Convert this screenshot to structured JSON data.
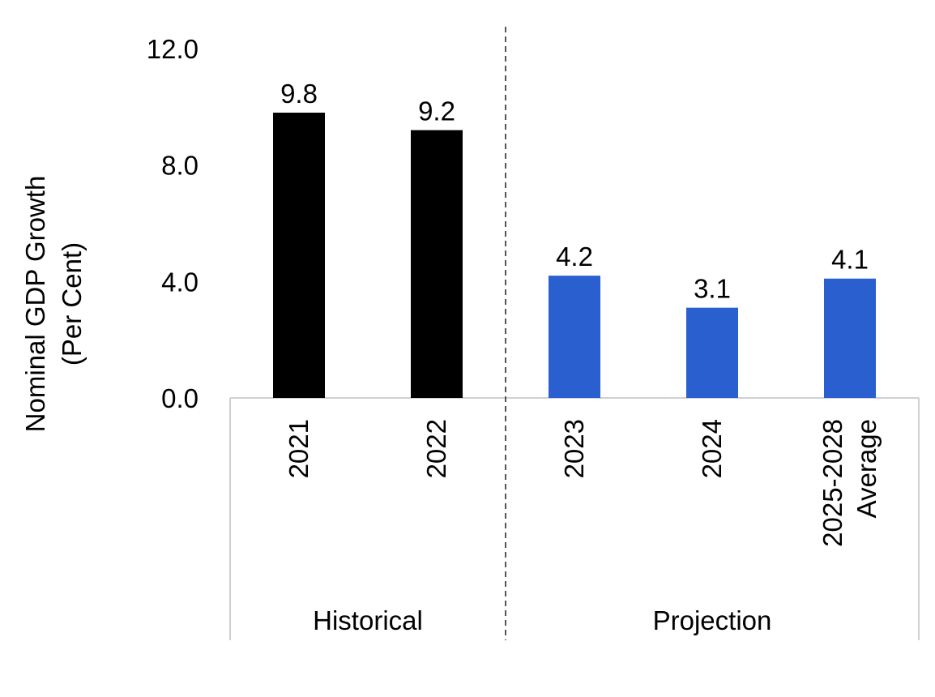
{
  "chart_data": {
    "type": "bar",
    "title": "",
    "xlabel": "",
    "ylabel": "Nominal GDP Growth\n(Per Cent)",
    "ylabel_lines": [
      "Nominal GDP Growth",
      "(Per Cent)"
    ],
    "ylim": [
      0,
      12
    ],
    "yticks": [
      "0.0",
      "4.0",
      "8.0",
      "12.0"
    ],
    "yticks_values": [
      0,
      4,
      8,
      12
    ],
    "categories": [
      "2021",
      "2022",
      "2023",
      "2024",
      "2025-2028 Average"
    ],
    "category_label_lines": [
      [
        "2021"
      ],
      [
        "2022"
      ],
      [
        "2023"
      ],
      [
        "2024"
      ],
      [
        "2025-2028",
        "Average"
      ]
    ],
    "values": [
      9.8,
      9.2,
      4.2,
      3.1,
      4.1
    ],
    "value_labels": [
      "9.8",
      "9.2",
      "4.2",
      "3.1",
      "4.1"
    ],
    "groups": [
      {
        "label": "Historical",
        "start": 0,
        "end": 1
      },
      {
        "label": "Projection",
        "start": 2,
        "end": 4
      }
    ],
    "bar_colors": [
      "#000000",
      "#000000",
      "#2a5fcf",
      "#2a5fcf",
      "#2a5fcf"
    ],
    "grid": false,
    "legend": "none"
  }
}
